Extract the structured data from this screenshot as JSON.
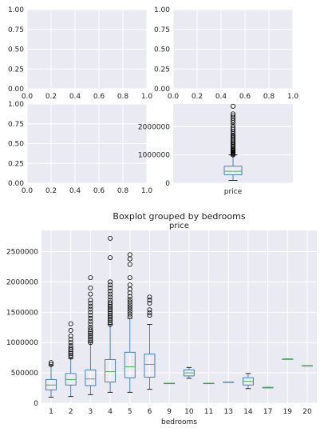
{
  "chart_data": [
    {
      "type": "line",
      "panel": "top-left",
      "x_ticks": [
        "0.0",
        "0.2",
        "0.4",
        "0.6",
        "0.8",
        "1.0"
      ],
      "y_ticks": [
        "0.00",
        "0.25",
        "0.50",
        "0.75",
        "1.00"
      ],
      "xlim": [
        0,
        1
      ],
      "ylim": [
        0,
        1
      ],
      "grid": true,
      "series": []
    },
    {
      "type": "line",
      "panel": "top-right",
      "x_ticks": [
        "0.0",
        "0.2",
        "0.4",
        "0.6",
        "0.8",
        "1.0"
      ],
      "y_ticks": [
        "0.00",
        "0.25",
        "0.50",
        "0.75",
        "1.00"
      ],
      "xlim": [
        0,
        1
      ],
      "ylim": [
        0,
        1
      ],
      "grid": true,
      "series": []
    },
    {
      "type": "line",
      "panel": "middle-left",
      "x_ticks": [
        "0.0",
        "0.2",
        "0.4",
        "0.6",
        "0.8",
        "1.0"
      ],
      "y_ticks": [
        "0.00",
        "0.25",
        "0.50",
        "0.75",
        "1.00"
      ],
      "xlim": [
        0,
        1
      ],
      "ylim": [
        0,
        1
      ],
      "grid": true,
      "series": []
    },
    {
      "type": "box",
      "panel": "middle-right",
      "categories": [
        "price"
      ],
      "y_ticks": [
        "0",
        "1000000",
        "2000000"
      ],
      "ylim": [
        0,
        2800000
      ],
      "grid": true,
      "boxes": [
        {
          "label": "price",
          "whislo": 100000,
          "q1": 300000,
          "med": 420000,
          "q3": 600000,
          "whishi": 1000000,
          "fliers": [
            1000000,
            1030000,
            1060000,
            1090000,
            1120000,
            1150000,
            1180000,
            1210000,
            1250000,
            1300000,
            1350000,
            1400000,
            1450000,
            1500000,
            1550000,
            1600000,
            1650000,
            1700000,
            1750000,
            1820000,
            1900000,
            1970000,
            2050000,
            2150000,
            2220000,
            2300000,
            2380000,
            2450000,
            2720000
          ]
        }
      ]
    },
    {
      "type": "box",
      "panel": "bottom",
      "title": "price",
      "suptitle": "Boxplot grouped by bedrooms",
      "xlabel": "bedrooms",
      "categories": [
        "1",
        "2",
        "3",
        "4",
        "5",
        "6",
        "9",
        "10",
        "11",
        "13",
        "14",
        "17",
        "19",
        "20"
      ],
      "y_ticks": [
        "0",
        "500000",
        "1000000",
        "1500000",
        "2000000",
        "2500000"
      ],
      "ylim": [
        0,
        2850000
      ],
      "grid": true,
      "boxes": [
        {
          "label": "1",
          "whislo": 100000,
          "q1": 220000,
          "med": 300000,
          "q3": 390000,
          "whishi": 620000,
          "fliers": [
            640000,
            670000
          ]
        },
        {
          "label": "2",
          "whislo": 110000,
          "q1": 300000,
          "med": 390000,
          "q3": 490000,
          "whishi": 740000,
          "fliers": [
            760000,
            790000,
            820000,
            850000,
            880000,
            910000,
            950000,
            1000000,
            1050000,
            1110000,
            1200000,
            1310000
          ]
        },
        {
          "label": "3",
          "whislo": 140000,
          "q1": 290000,
          "med": 400000,
          "q3": 550000,
          "whishi": 1000000,
          "fliers": [
            1000000,
            1030000,
            1060000,
            1090000,
            1120000,
            1150000,
            1180000,
            1210000,
            1250000,
            1300000,
            1350000,
            1400000,
            1450000,
            1500000,
            1550000,
            1600000,
            1650000,
            1700000,
            1800000,
            1900000,
            2070000
          ]
        },
        {
          "label": "4",
          "whislo": 180000,
          "q1": 350000,
          "med": 520000,
          "q3": 720000,
          "whishi": 1300000,
          "fliers": [
            1300000,
            1330000,
            1360000,
            1390000,
            1420000,
            1450000,
            1480000,
            1510000,
            1540000,
            1570000,
            1600000,
            1630000,
            1660000,
            1700000,
            1750000,
            1800000,
            1850000,
            1900000,
            1950000,
            2000000,
            2400000,
            2720000
          ]
        },
        {
          "label": "5",
          "whislo": 180000,
          "q1": 420000,
          "med": 600000,
          "q3": 840000,
          "whishi": 1400000,
          "fliers": [
            1430000,
            1470000,
            1510000,
            1550000,
            1590000,
            1630000,
            1670000,
            1710000,
            1760000,
            1820000,
            1880000,
            1950000,
            2070000,
            2290000,
            2380000,
            2450000
          ]
        },
        {
          "label": "6",
          "whislo": 230000,
          "q1": 430000,
          "med": 640000,
          "q3": 810000,
          "whishi": 1300000,
          "fliers": [
            1450000,
            1490000,
            1540000,
            1650000,
            1700000,
            1750000
          ]
        },
        {
          "label": "9",
          "whislo": 330000,
          "q1": 330000,
          "med": 330000,
          "q3": 330000,
          "whishi": 330000,
          "fliers": []
        },
        {
          "label": "10",
          "whislo": 410000,
          "q1": 450000,
          "med": 500000,
          "q3": 550000,
          "whishi": 590000,
          "fliers": []
        },
        {
          "label": "11",
          "whislo": 330000,
          "q1": 330000,
          "med": 330000,
          "q3": 330000,
          "whishi": 330000,
          "fliers": []
        },
        {
          "label": "13",
          "whislo": 350000,
          "q1": 350000,
          "med": 350000,
          "q3": 350000,
          "whishi": 350000,
          "fliers": []
        },
        {
          "label": "14",
          "whislo": 240000,
          "q1": 300000,
          "med": 360000,
          "q3": 420000,
          "whishi": 490000,
          "fliers": []
        },
        {
          "label": "17",
          "whislo": 260000,
          "q1": 260000,
          "med": 260000,
          "q3": 260000,
          "whishi": 260000,
          "fliers": []
        },
        {
          "label": "19",
          "whislo": 730000,
          "q1": 730000,
          "med": 730000,
          "q3": 730000,
          "whishi": 730000,
          "fliers": []
        },
        {
          "label": "20",
          "whislo": 620000,
          "q1": 620000,
          "med": 620000,
          "q3": 620000,
          "whishi": 620000,
          "fliers": []
        }
      ]
    }
  ],
  "colors": {
    "plot_bg": "#eaeaf2",
    "grid": "#ffffff",
    "box": "#3675b4",
    "median": "#4caf50",
    "text": "#222222"
  }
}
